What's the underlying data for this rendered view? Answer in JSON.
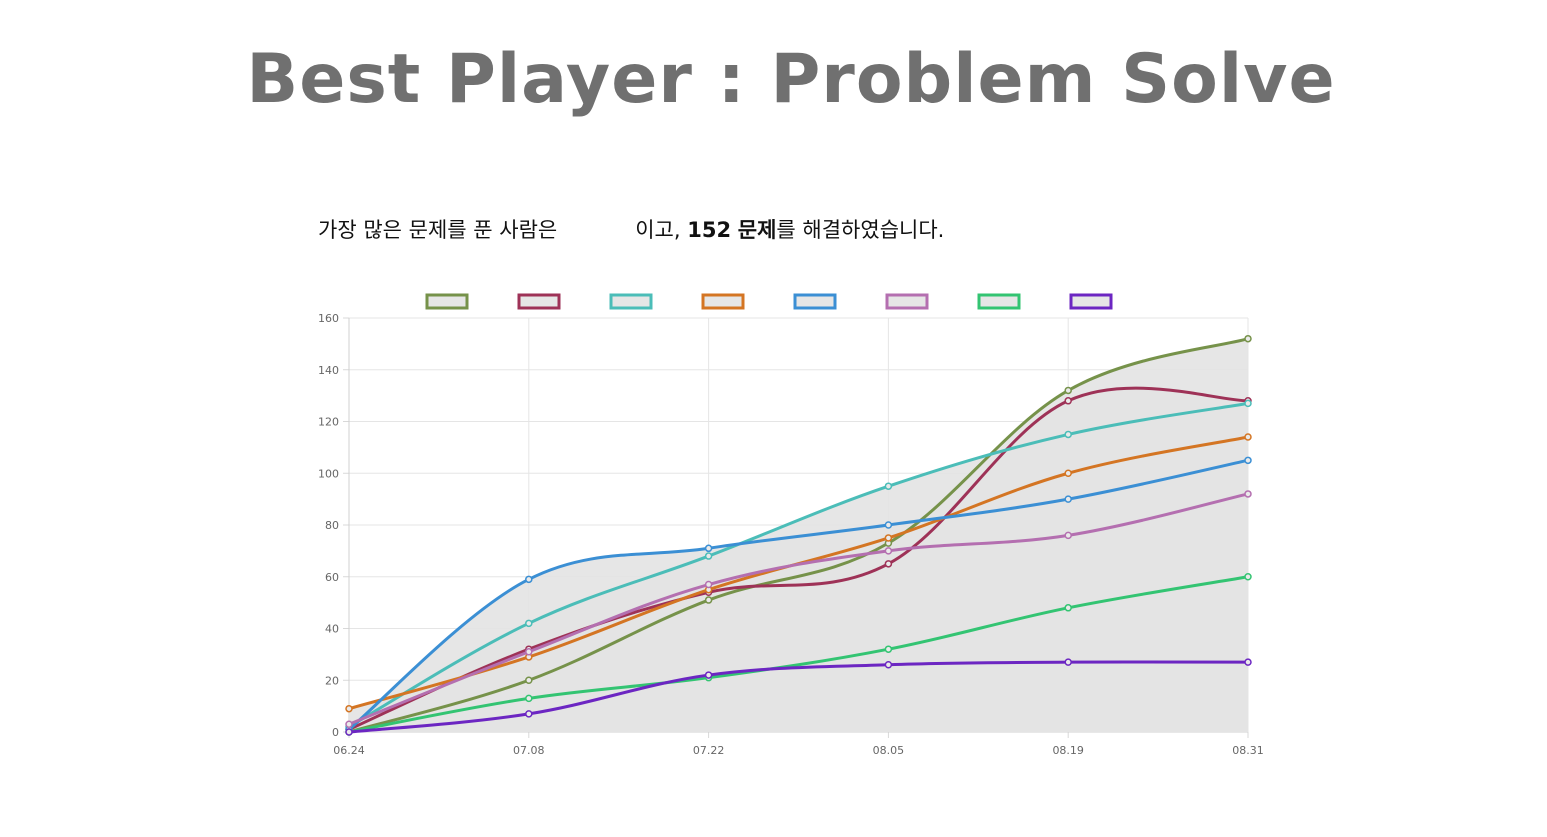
{
  "title": "Best Player : Problem Solve",
  "sentence": {
    "prefix": "가장 많은 문제를 푼 사람은",
    "middle": "이고,",
    "count": "152",
    "unit": "문제",
    "suffix": "를 해결하였습니다."
  },
  "chart_data": {
    "type": "area",
    "categories": [
      "06.24",
      "07.08",
      "07.22",
      "08.05",
      "08.19",
      "08.31"
    ],
    "ylim": [
      0,
      160
    ],
    "yticks": [
      0,
      20,
      40,
      60,
      80,
      100,
      120,
      140,
      160
    ],
    "grid": true,
    "legend": "top",
    "fill_color": "#e3e3e3",
    "series": [
      {
        "color": "#76924a",
        "values": [
          0,
          20,
          51,
          73,
          132,
          152
        ]
      },
      {
        "color": "#9e3257",
        "values": [
          1,
          32,
          54,
          65,
          128,
          128
        ]
      },
      {
        "color": "#4bbdb8",
        "values": [
          2,
          42,
          68,
          95,
          115,
          127
        ]
      },
      {
        "color": "#d47523",
        "values": [
          9,
          29,
          55,
          75,
          100,
          114
        ]
      },
      {
        "color": "#3b8fd4",
        "values": [
          1,
          59,
          71,
          80,
          90,
          105
        ]
      },
      {
        "color": "#b46fb0",
        "values": [
          3,
          31,
          57,
          70,
          76,
          92
        ]
      },
      {
        "color": "#33c472",
        "values": [
          0,
          13,
          21,
          32,
          48,
          60
        ]
      },
      {
        "color": "#6c26c2",
        "values": [
          0,
          7,
          22,
          26,
          27,
          27
        ]
      }
    ]
  }
}
